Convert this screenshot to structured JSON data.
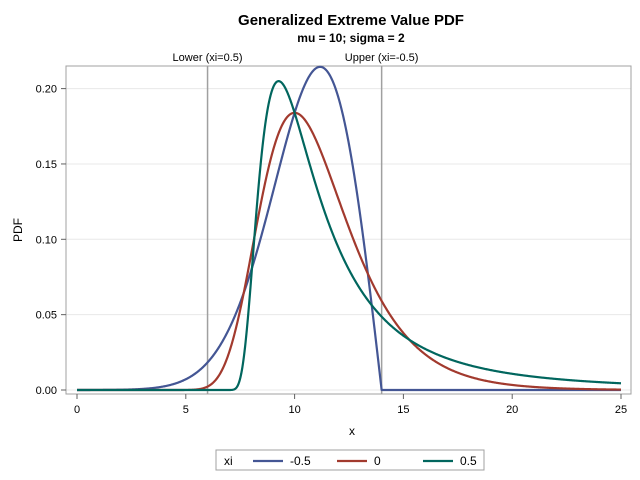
{
  "chart_data": {
    "type": "line",
    "title": "Generalized Extreme Value PDF",
    "subtitle": "mu = 10; sigma = 2",
    "xlabel": "x",
    "ylabel": "PDF",
    "xlim": [
      0,
      25
    ],
    "ylim": [
      0,
      0.215
    ],
    "xticks": [
      "0",
      "5",
      "10",
      "15",
      "20",
      "25"
    ],
    "yticks": [
      "0.00",
      "0.05",
      "0.10",
      "0.15",
      "0.20"
    ],
    "grid": "horizontal",
    "params": {
      "mu": 10,
      "sigma": 2
    },
    "reference_lines": [
      {
        "x": 6,
        "label": "Lower (xi=0.5)"
      },
      {
        "x": 14,
        "label": "Upper (xi=-0.5)"
      }
    ],
    "legend": {
      "position": "bottom",
      "title": "xi"
    },
    "series": [
      {
        "name": "-0.5",
        "xi": -0.5,
        "color": "#445694"
      },
      {
        "name": "0",
        "xi": 0,
        "color": "#A23A2E"
      },
      {
        "name": "0.5",
        "xi": 0.5,
        "color": "#01665E"
      }
    ]
  }
}
